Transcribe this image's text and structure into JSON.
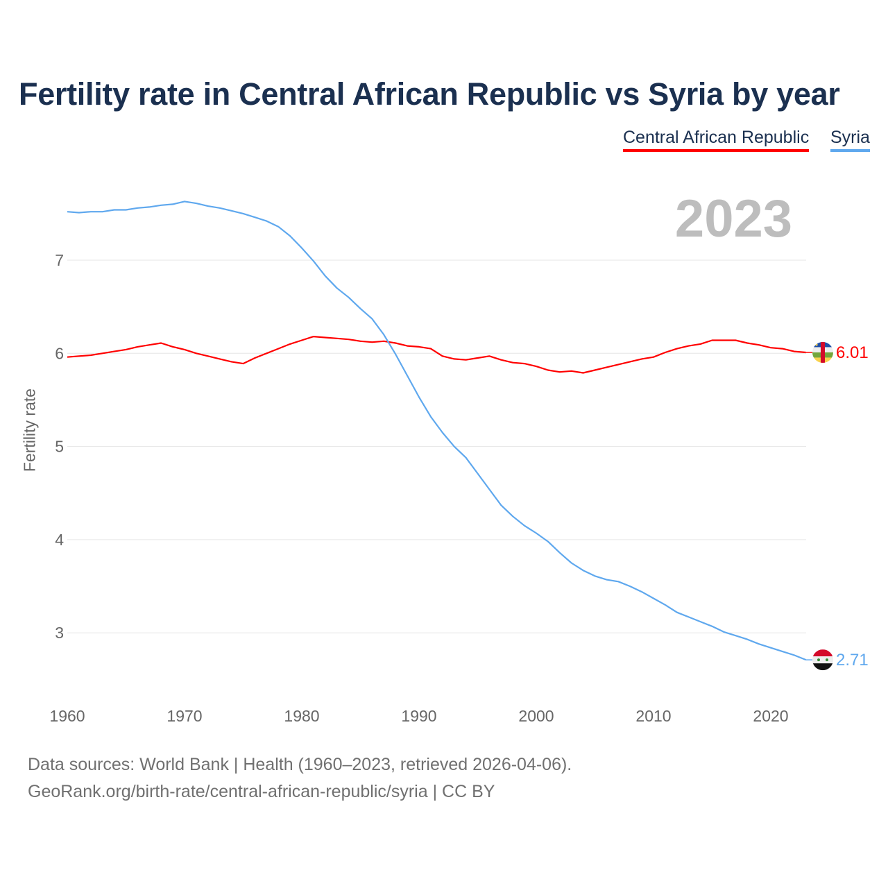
{
  "chart_data": {
    "type": "line",
    "title": "Fertility rate in Central African Republic vs Syria by year",
    "ylabel": "Fertility rate",
    "xlabel": "",
    "xlim": [
      1960,
      2023
    ],
    "ylim": [
      2.45,
      7.75
    ],
    "x_ticks": [
      "1960",
      "1970",
      "1980",
      "1990",
      "2000",
      "2010",
      "2020"
    ],
    "y_ticks": [
      "3",
      "4",
      "5",
      "6",
      "7"
    ],
    "grid": true,
    "current_year": "2023",
    "legend": [
      "Central African Republic",
      "Syria"
    ],
    "legend_placement": "top-right",
    "series": [
      {
        "name": "Central African Republic",
        "color": "#ff0000",
        "end_label": "6.01",
        "values": [
          5.96,
          5.97,
          5.98,
          6.0,
          6.02,
          6.04,
          6.07,
          6.09,
          6.11,
          6.07,
          6.04,
          6.0,
          5.97,
          5.94,
          5.91,
          5.89,
          5.95,
          6.0,
          6.05,
          6.1,
          6.14,
          6.18,
          6.17,
          6.16,
          6.15,
          6.13,
          6.12,
          6.13,
          6.11,
          6.08,
          6.07,
          6.05,
          5.97,
          5.94,
          5.93,
          5.95,
          5.97,
          5.93,
          5.9,
          5.89,
          5.86,
          5.82,
          5.8,
          5.81,
          5.79,
          5.82,
          5.85,
          5.88,
          5.91,
          5.94,
          5.96,
          6.01,
          6.05,
          6.08,
          6.1,
          6.14,
          6.14,
          6.14,
          6.11,
          6.09,
          6.06,
          6.05,
          6.02,
          6.01
        ]
      },
      {
        "name": "Syria",
        "color": "#5fa8ee",
        "end_label": "2.71",
        "values": [
          7.52,
          7.51,
          7.52,
          7.52,
          7.54,
          7.54,
          7.56,
          7.57,
          7.59,
          7.6,
          7.63,
          7.61,
          7.58,
          7.56,
          7.53,
          7.5,
          7.46,
          7.42,
          7.36,
          7.26,
          7.13,
          6.99,
          6.83,
          6.7,
          6.6,
          6.48,
          6.37,
          6.2,
          5.99,
          5.76,
          5.53,
          5.32,
          5.15,
          5.0,
          4.88,
          4.71,
          4.54,
          4.37,
          4.25,
          4.15,
          4.07,
          3.98,
          3.86,
          3.75,
          3.67,
          3.61,
          3.57,
          3.55,
          3.5,
          3.44,
          3.37,
          3.3,
          3.22,
          3.17,
          3.12,
          3.07,
          3.01,
          2.97,
          2.93,
          2.88,
          2.84,
          2.8,
          2.76,
          2.71
        ]
      }
    ]
  },
  "footer": {
    "source": "Data sources: World Bank | Health (1960–2023, retrieved 2026-04-06).",
    "link": "GeoRank.org/birth-rate/central-african-republic/syria | CC BY"
  }
}
